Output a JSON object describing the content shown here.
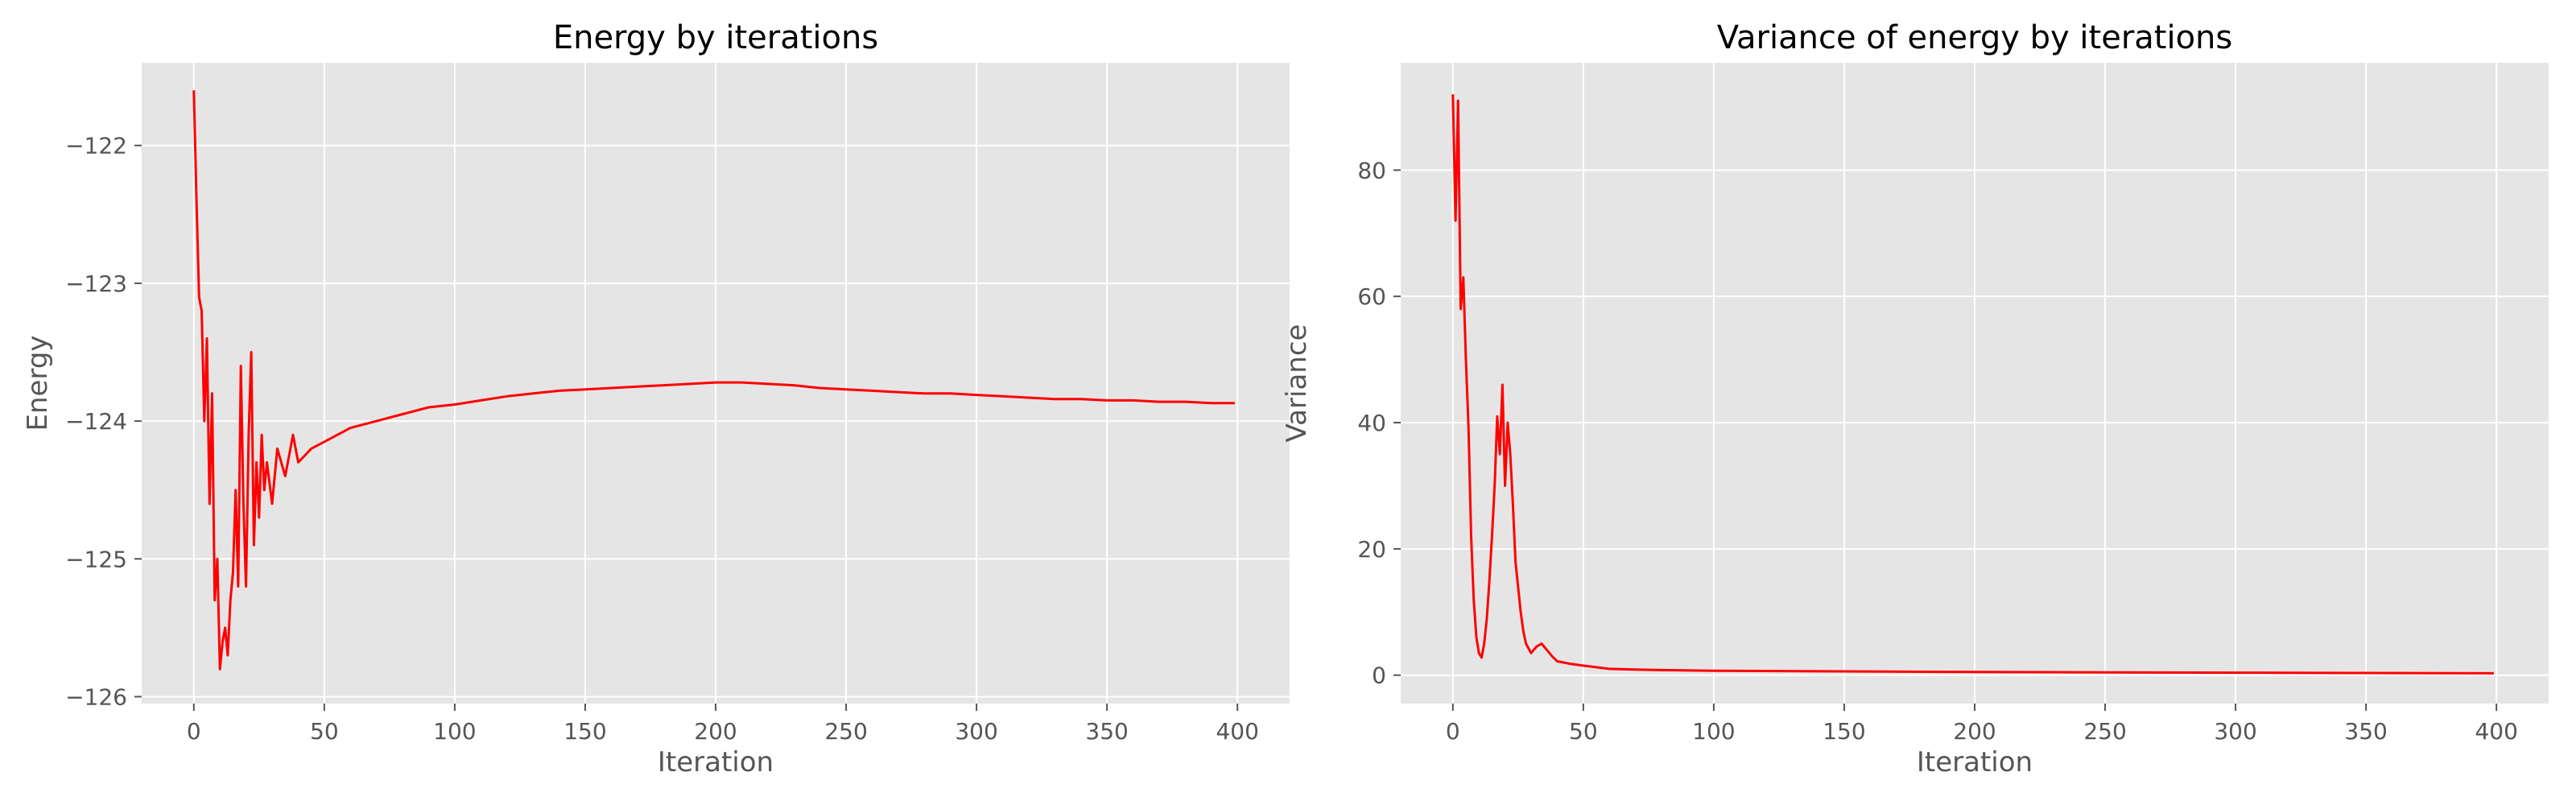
{
  "chart_data": [
    {
      "type": "line",
      "title": "Energy by iterations",
      "xlabel": "Iteration",
      "ylabel": "Energy",
      "xlim": [
        -20,
        420
      ],
      "ylim": [
        -126.05,
        -121.4
      ],
      "xticks": [
        0,
        50,
        100,
        150,
        200,
        250,
        300,
        350,
        400
      ],
      "yticks": [
        -126,
        -125,
        -124,
        -123,
        -122
      ],
      "ytick_labels": [
        "−126",
        "−125",
        "−124",
        "−123",
        "−122"
      ],
      "grid": true,
      "line_color": "#ff0000",
      "background": "#e5e5e5",
      "series": [
        {
          "values": [
            [
              0,
              -121.6
            ],
            [
              1,
              -122.4
            ],
            [
              2,
              -123.1
            ],
            [
              3,
              -123.2
            ],
            [
              4,
              -124.0
            ],
            [
              5,
              -123.4
            ],
            [
              6,
              -124.6
            ],
            [
              7,
              -123.8
            ],
            [
              8,
              -125.3
            ],
            [
              9,
              -125.0
            ],
            [
              10,
              -125.8
            ],
            [
              11,
              -125.6
            ],
            [
              12,
              -125.5
            ],
            [
              13,
              -125.7
            ],
            [
              14,
              -125.3
            ],
            [
              15,
              -125.1
            ],
            [
              16,
              -124.5
            ],
            [
              17,
              -125.2
            ],
            [
              18,
              -123.6
            ],
            [
              19,
              -124.6
            ],
            [
              20,
              -125.2
            ],
            [
              21,
              -124.1
            ],
            [
              22,
              -123.5
            ],
            [
              23,
              -124.9
            ],
            [
              24,
              -124.3
            ],
            [
              25,
              -124.7
            ],
            [
              26,
              -124.1
            ],
            [
              27,
              -124.5
            ],
            [
              28,
              -124.3
            ],
            [
              30,
              -124.6
            ],
            [
              32,
              -124.2
            ],
            [
              35,
              -124.4
            ],
            [
              38,
              -124.1
            ],
            [
              40,
              -124.3
            ],
            [
              45,
              -124.2
            ],
            [
              50,
              -124.15
            ],
            [
              55,
              -124.1
            ],
            [
              60,
              -124.05
            ],
            [
              70,
              -124.0
            ],
            [
              80,
              -123.95
            ],
            [
              90,
              -123.9
            ],
            [
              100,
              -123.88
            ],
            [
              110,
              -123.85
            ],
            [
              120,
              -123.82
            ],
            [
              130,
              -123.8
            ],
            [
              140,
              -123.78
            ],
            [
              150,
              -123.77
            ],
            [
              160,
              -123.76
            ],
            [
              170,
              -123.75
            ],
            [
              180,
              -123.74
            ],
            [
              190,
              -123.73
            ],
            [
              200,
              -123.72
            ],
            [
              210,
              -123.72
            ],
            [
              220,
              -123.73
            ],
            [
              230,
              -123.74
            ],
            [
              240,
              -123.76
            ],
            [
              250,
              -123.77
            ],
            [
              260,
              -123.78
            ],
            [
              270,
              -123.79
            ],
            [
              280,
              -123.8
            ],
            [
              290,
              -123.8
            ],
            [
              300,
              -123.81
            ],
            [
              310,
              -123.82
            ],
            [
              320,
              -123.83
            ],
            [
              330,
              -123.84
            ],
            [
              340,
              -123.84
            ],
            [
              350,
              -123.85
            ],
            [
              360,
              -123.85
            ],
            [
              370,
              -123.86
            ],
            [
              380,
              -123.86
            ],
            [
              390,
              -123.87
            ],
            [
              399,
              -123.87
            ]
          ]
        }
      ]
    },
    {
      "type": "line",
      "title": "Variance of energy by iterations",
      "xlabel": "Iteration",
      "ylabel": "Variance",
      "xlim": [
        -20,
        420
      ],
      "ylim": [
        -4.5,
        97
      ],
      "xticks": [
        0,
        50,
        100,
        150,
        200,
        250,
        300,
        350,
        400
      ],
      "yticks": [
        0,
        20,
        40,
        60,
        80
      ],
      "ytick_labels": [
        "0",
        "20",
        "40",
        "60",
        "80"
      ],
      "grid": true,
      "line_color": "#ff0000",
      "background": "#e5e5e5",
      "series": [
        {
          "values": [
            [
              0,
              92
            ],
            [
              1,
              72
            ],
            [
              2,
              91
            ],
            [
              3,
              58
            ],
            [
              4,
              63
            ],
            [
              5,
              50
            ],
            [
              6,
              39
            ],
            [
              7,
              22
            ],
            [
              8,
              12
            ],
            [
              9,
              6
            ],
            [
              10,
              3.5
            ],
            [
              11,
              2.8
            ],
            [
              12,
              5
            ],
            [
              13,
              9
            ],
            [
              14,
              15
            ],
            [
              15,
              22
            ],
            [
              16,
              30
            ],
            [
              17,
              41
            ],
            [
              18,
              35
            ],
            [
              19,
              46
            ],
            [
              20,
              30
            ],
            [
              21,
              40
            ],
            [
              22,
              35
            ],
            [
              23,
              27
            ],
            [
              24,
              18
            ],
            [
              25,
              14
            ],
            [
              26,
              10
            ],
            [
              27,
              7
            ],
            [
              28,
              5
            ],
            [
              30,
              3.5
            ],
            [
              32,
              4.5
            ],
            [
              34,
              5
            ],
            [
              36,
              4
            ],
            [
              38,
              3
            ],
            [
              40,
              2.2
            ],
            [
              45,
              1.8
            ],
            [
              50,
              1.5
            ],
            [
              60,
              1.0
            ],
            [
              70,
              0.9
            ],
            [
              80,
              0.8
            ],
            [
              100,
              0.7
            ],
            [
              150,
              0.6
            ],
            [
              200,
              0.5
            ],
            [
              250,
              0.45
            ],
            [
              300,
              0.4
            ],
            [
              350,
              0.35
            ],
            [
              399,
              0.3
            ]
          ]
        }
      ]
    }
  ]
}
